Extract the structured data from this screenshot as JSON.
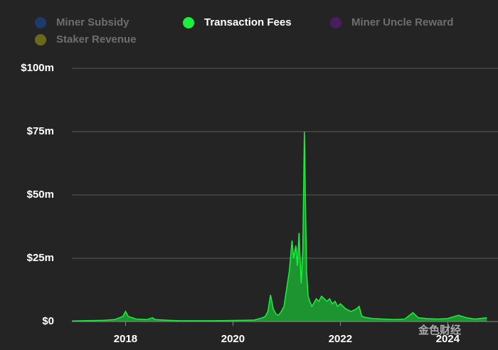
{
  "chart_data": {
    "type": "area",
    "legend": [
      {
        "name": "Miner Subsidy",
        "color": "#1c3a6b",
        "hidden": true
      },
      {
        "name": "Transaction Fees",
        "color": "#19f03c",
        "hidden": false
      },
      {
        "name": "Miner Uncle Reward",
        "color": "#4a1d63",
        "hidden": true
      },
      {
        "name": "Staker Revenue",
        "color": "#6b6a1c",
        "hidden": true
      }
    ],
    "x": [
      2017.0,
      2017.2,
      2017.4,
      2017.6,
      2017.8,
      2017.95,
      2018.0,
      2018.05,
      2018.2,
      2018.4,
      2018.5,
      2018.55,
      2018.8,
      2019.0,
      2019.3,
      2019.6,
      2019.9,
      2020.2,
      2020.4,
      2020.55,
      2020.6,
      2020.65,
      2020.7,
      2020.75,
      2020.8,
      2020.85,
      2020.9,
      2020.95,
      2021.0,
      2021.05,
      2021.1,
      2021.13,
      2021.17,
      2021.2,
      2021.23,
      2021.27,
      2021.3,
      2021.33,
      2021.37,
      2021.4,
      2021.43,
      2021.47,
      2021.5,
      2021.55,
      2021.6,
      2021.65,
      2021.7,
      2021.75,
      2021.8,
      2021.85,
      2021.9,
      2021.95,
      2022.0,
      2022.1,
      2022.2,
      2022.3,
      2022.35,
      2022.4,
      2022.5,
      2022.6,
      2022.8,
      2023.0,
      2023.2,
      2023.35,
      2023.45,
      2023.6,
      2023.8,
      2024.0,
      2024.2,
      2024.35,
      2024.5,
      2024.73
    ],
    "series": [
      {
        "name": "Transaction Fees",
        "color": "#19f03c",
        "values": [
          0.2,
          0.3,
          0.4,
          0.5,
          0.8,
          2,
          4,
          2,
          1,
          0.8,
          1.5,
          0.8,
          0.5,
          0.3,
          0.3,
          0.3,
          0.4,
          0.5,
          0.6,
          1.5,
          2,
          4,
          10.5,
          5,
          3,
          2.5,
          4,
          6,
          13,
          20,
          32,
          25,
          30,
          22,
          35,
          15,
          28,
          75,
          20,
          10,
          8,
          6,
          7,
          9,
          8,
          10,
          9,
          8,
          9,
          7,
          8,
          6,
          7,
          5,
          4,
          5,
          6,
          2,
          1.5,
          1.2,
          1,
          0.8,
          1,
          3.5,
          1.5,
          1.2,
          1,
          1.2,
          2.5,
          1.5,
          1,
          1.5
        ]
      }
    ],
    "xlim": [
      2017.0,
      2024.75
    ],
    "xticks": [
      2018,
      2020,
      2022,
      2024
    ],
    "ylim": [
      0,
      100
    ],
    "yticks": [
      {
        "value": 0,
        "label": "$0"
      },
      {
        "value": 25,
        "label": "$25m"
      },
      {
        "value": 50,
        "label": "$50m"
      },
      {
        "value": 75,
        "label": "$75m"
      },
      {
        "value": 100,
        "label": "$100m"
      }
    ],
    "grid": true,
    "watermark": "金色财经"
  }
}
